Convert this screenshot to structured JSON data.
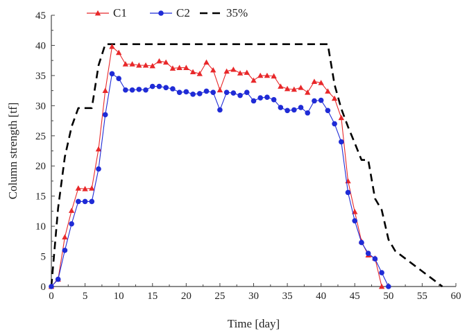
{
  "chart_data": {
    "type": "line",
    "xlabel": "Time [day]",
    "ylabel": "Column strength [tf]",
    "xlim": [
      0,
      60
    ],
    "ylim": [
      0,
      45
    ],
    "xticks": [
      "0",
      "5",
      "10",
      "15",
      "20",
      "25",
      "30",
      "35",
      "40",
      "45",
      "50",
      "55",
      "60"
    ],
    "yticks": [
      "0",
      "5",
      "10",
      "15",
      "20",
      "25",
      "30",
      "35",
      "40",
      "45"
    ],
    "grid": false,
    "legend_position": "top",
    "series": [
      {
        "name": "C1",
        "color": "#e8282a",
        "marker": "triangle",
        "dash": "solid",
        "x": [
          0,
          1,
          2,
          3,
          4,
          5,
          6,
          7,
          8,
          9,
          10,
          11,
          12,
          13,
          14,
          15,
          16,
          17,
          18,
          19,
          20,
          21,
          22,
          23,
          24,
          25,
          26,
          27,
          28,
          29,
          30,
          31,
          32,
          33,
          34,
          35,
          36,
          37,
          38,
          39,
          40,
          41,
          42,
          43,
          44,
          45,
          46,
          47,
          48,
          49
        ],
        "y": [
          0,
          1.2,
          8.2,
          12.6,
          16.3,
          16.2,
          16.3,
          22.8,
          32.5,
          39.8,
          38.8,
          36.9,
          36.9,
          36.7,
          36.7,
          36.6,
          37.4,
          37.2,
          36.2,
          36.3,
          36.3,
          35.6,
          35.3,
          37.2,
          35.9,
          32.6,
          35.7,
          36.0,
          35.4,
          35.5,
          34.2,
          35.0,
          35.0,
          34.9,
          33.2,
          32.8,
          32.7,
          33.0,
          32.2,
          34.0,
          33.8,
          32.4,
          31.2,
          28.0,
          17.5,
          12.4,
          7.5,
          5.2,
          4.7,
          0
        ]
      },
      {
        "name": "C2",
        "color": "#1f2bd6",
        "marker": "circle",
        "dash": "solid",
        "x": [
          0,
          1,
          2,
          3,
          4,
          5,
          6,
          7,
          8,
          9,
          10,
          11,
          12,
          13,
          14,
          15,
          16,
          17,
          18,
          19,
          20,
          21,
          22,
          23,
          24,
          25,
          26,
          27,
          28,
          29,
          30,
          31,
          32,
          33,
          34,
          35,
          36,
          37,
          38,
          39,
          40,
          41,
          42,
          43,
          44,
          45,
          46,
          47,
          48,
          49,
          50
        ],
        "y": [
          0,
          1.2,
          6.0,
          10.4,
          14.1,
          14.1,
          14.1,
          19.5,
          28.5,
          35.3,
          34.5,
          32.6,
          32.6,
          32.7,
          32.6,
          33.2,
          33.2,
          33.0,
          32.8,
          32.2,
          32.3,
          31.9,
          32.0,
          32.4,
          32.2,
          29.3,
          32.2,
          32.1,
          31.7,
          32.2,
          30.8,
          31.3,
          31.4,
          31.0,
          29.7,
          29.2,
          29.3,
          29.7,
          28.8,
          30.8,
          30.9,
          29.2,
          27.0,
          24.0,
          15.6,
          10.9,
          7.3,
          5.5,
          4.6,
          2.3,
          0
        ]
      },
      {
        "name": "35%",
        "color": "#000000",
        "marker": "none",
        "dash": "dashed",
        "x": [
          0,
          1,
          2,
          3,
          4,
          5,
          6,
          7,
          8,
          9,
          10,
          41,
          42,
          43,
          44,
          45,
          46,
          47,
          48,
          49,
          50,
          51,
          58
        ],
        "y": [
          0,
          13.0,
          21.5,
          26.5,
          29.6,
          29.6,
          29.6,
          36.7,
          40.2,
          40.2,
          40.2,
          40.2,
          33.5,
          29.5,
          26.5,
          23.8,
          21.0,
          21.0,
          14.6,
          12.7,
          7.8,
          5.9,
          0
        ]
      }
    ]
  }
}
